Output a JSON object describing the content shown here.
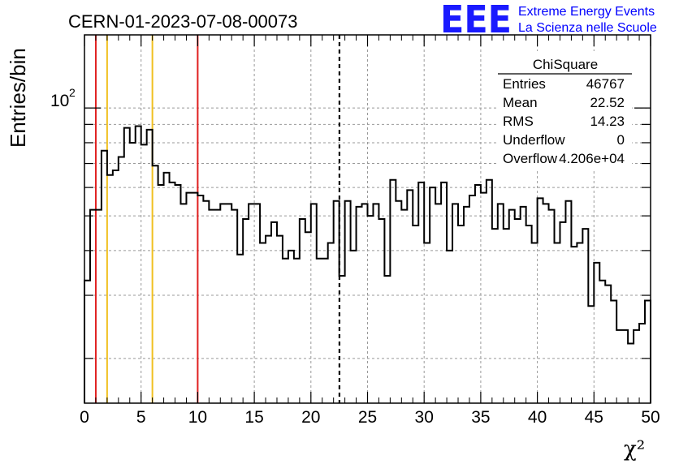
{
  "header": {
    "title": "CERN-01-2023-07-08-00073",
    "logo_text": "EEE",
    "logo_line1": "Extreme Energy Events",
    "logo_line2": "La Scienza nelle Scuole",
    "logo_color": "#1a1aff"
  },
  "stats_box": {
    "name": "ChiSquare",
    "rows": [
      {
        "label": "Entries",
        "value": "46767"
      },
      {
        "label": "Mean",
        "value": "22.52"
      },
      {
        "label": "RMS",
        "value": "14.23"
      },
      {
        "label": "Underflow",
        "value": "0"
      },
      {
        "label": "Overflow",
        "value": "4.206e+04"
      }
    ]
  },
  "chart_data": {
    "type": "histogram",
    "title": "CERN-01-2023-07-08-00073",
    "xlabel": "χ²",
    "ylabel": "Entries/bin",
    "xlim": [
      0,
      50
    ],
    "ylim": [
      15,
      160
    ],
    "yscale": "log",
    "grid": true,
    "bin_width": 0.5,
    "xticks": [
      "0",
      "5",
      "10",
      "15",
      "20",
      "25",
      "30",
      "35",
      "40",
      "45",
      "50"
    ],
    "ytick_label": "10",
    "ytick_label_exp": "2",
    "ytick_value": 100,
    "values": [
      33,
      52,
      52,
      76,
      65,
      67,
      73,
      88,
      80,
      89,
      79,
      87,
      69,
      61,
      66,
      62,
      61,
      54,
      58,
      58,
      57,
      55,
      52,
      52,
      54,
      54,
      52,
      39,
      49,
      54,
      54,
      42,
      44,
      48,
      44,
      38,
      40,
      38,
      49,
      45,
      54,
      38,
      38,
      42,
      55,
      34,
      55,
      40,
      53,
      54,
      50,
      54,
      49,
      34,
      63,
      55,
      52,
      59,
      47,
      62,
      42,
      60,
      54,
      62,
      40,
      54,
      47,
      53,
      57,
      61,
      58,
      63,
      46,
      54,
      46,
      52,
      49,
      53,
      47,
      42,
      56,
      54,
      52,
      42,
      48,
      55,
      41,
      42,
      46,
      28,
      37,
      33,
      32,
      29,
      24,
      24,
      22,
      24,
      25,
      29
    ],
    "vlines": [
      {
        "x": 1,
        "color": "#e02020",
        "style": "solid"
      },
      {
        "x": 2,
        "color": "#f0c020",
        "style": "solid"
      },
      {
        "x": 6,
        "color": "#f0c020",
        "style": "solid"
      },
      {
        "x": 10,
        "color": "#e02020",
        "style": "solid"
      },
      {
        "x": 22.52,
        "color": "#000000",
        "style": "dashed"
      }
    ]
  }
}
